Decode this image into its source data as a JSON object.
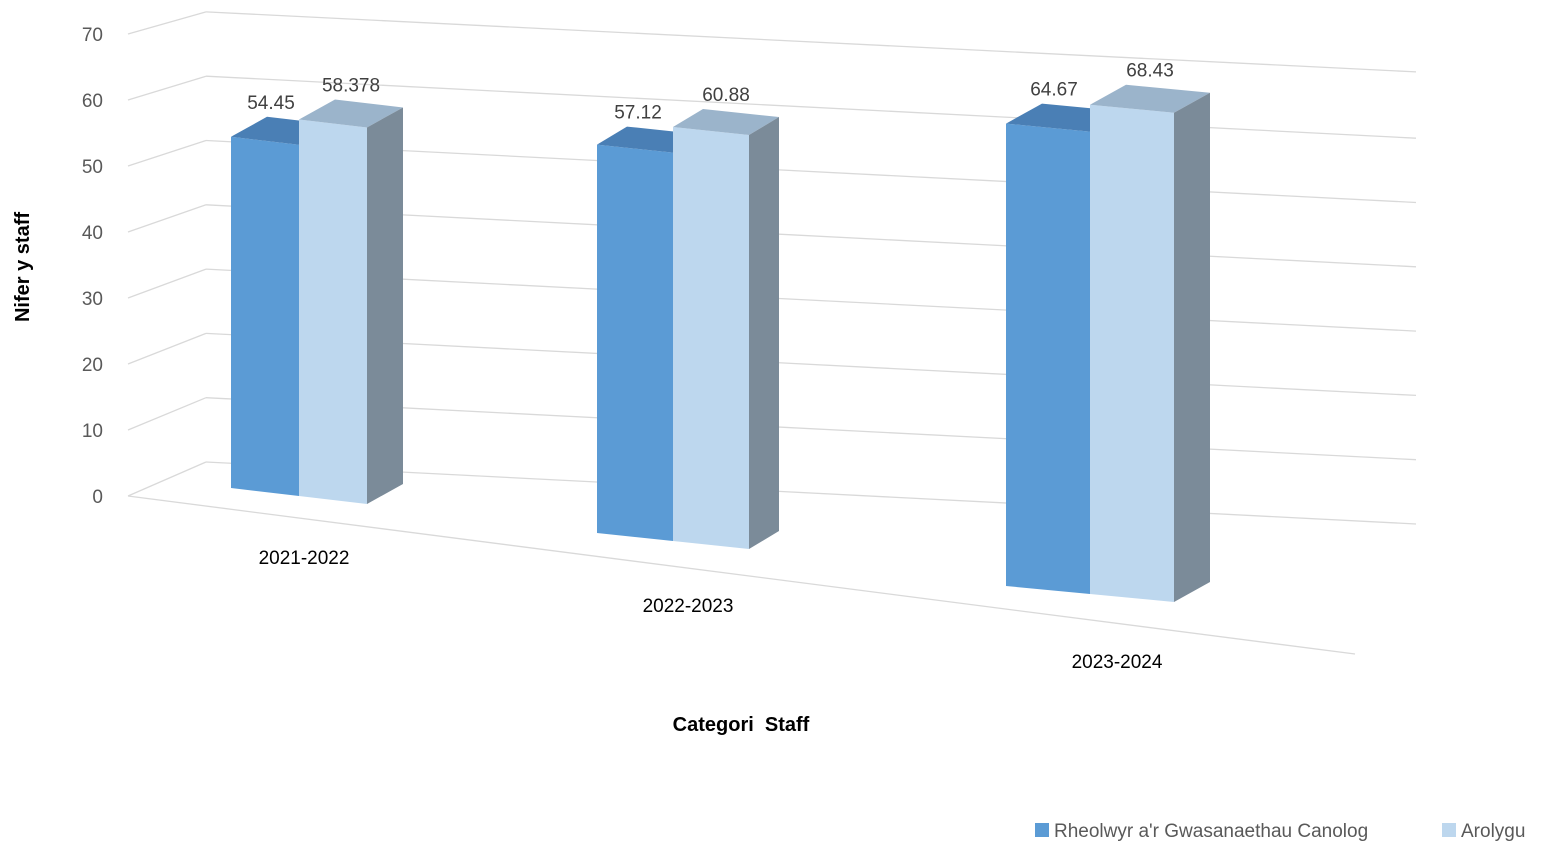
{
  "chart_data": {
    "type": "bar",
    "three_d": true,
    "categories": [
      "2021-2022",
      "2022-2023",
      "2023-2024"
    ],
    "series": [
      {
        "name": "Rheolwyr a'r Gwasanaethau Canolog",
        "values": [
          54.45,
          57.12,
          64.67
        ],
        "color": "#5b9bd5"
      },
      {
        "name": "Arolygu",
        "values": [
          58.378,
          60.88,
          68.43
        ],
        "color": "#bdd7ee"
      }
    ],
    "data_labels": [
      [
        "54.45",
        "57.12",
        "64.67"
      ],
      [
        "58.378",
        "60.88",
        "68.43"
      ]
    ],
    "xlabel": "Categori  Staff",
    "ylabel": "Nifer y staff",
    "ylim": [
      0,
      70
    ],
    "yticks": [
      0,
      10,
      20,
      30,
      40,
      50,
      60,
      70
    ],
    "grid": true,
    "legend_position": "bottom-right",
    "colors": {
      "side_face": "#7b8b99",
      "grid": "#d9d9d9",
      "top_blue": "#4a7fb5",
      "top_light": "#9bb4cb"
    }
  }
}
